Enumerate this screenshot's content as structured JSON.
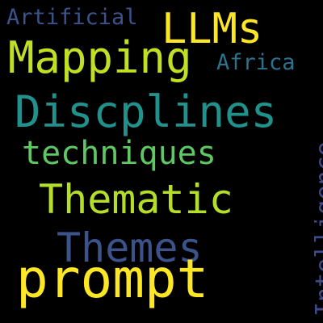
{
  "cloud": {
    "words": {
      "artificial": {
        "text": "Artificial",
        "color": "#3b528b"
      },
      "llms": {
        "text": "LLMs",
        "color": "#fde725"
      },
      "mapping": {
        "text": "Mapping",
        "color": "#c2df23"
      },
      "africa": {
        "text": "Africa",
        "color": "#2c728e"
      },
      "discplines": {
        "text": "Discplines",
        "color": "#21918c"
      },
      "techniques": {
        "text": "techniques",
        "color": "#5ec962"
      },
      "thematic": {
        "text": "Thematic",
        "color": "#b5de2b"
      },
      "themes": {
        "text": "Themes",
        "color": "#3b528b"
      },
      "prompt": {
        "text": "prompt",
        "color": "#fde725"
      },
      "intelligence": {
        "text": "Intelligence",
        "color": "#3e4a89"
      }
    }
  }
}
